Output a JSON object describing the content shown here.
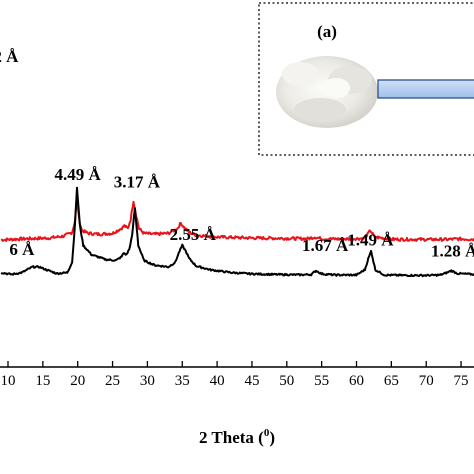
{
  "chart_data": {
    "type": "line",
    "xlabel_main": "2 Theta (",
    "xlabel_sup": "0",
    "xlabel_close": ")",
    "xlim": [
      9,
      77
    ],
    "ylim": [
      0,
      100
    ],
    "x_ticks": [
      "10",
      "15",
      "20",
      "25",
      "30",
      "35",
      "40",
      "45",
      "50",
      "55",
      "60",
      "65",
      "70",
      "75"
    ],
    "x_tick_values": [
      10,
      15,
      20,
      25,
      30,
      35,
      40,
      45,
      50,
      55,
      60,
      65,
      70,
      75
    ],
    "series": [
      {
        "color": "#e8141b",
        "x": [
          9,
          12,
          16,
          18,
          19.2,
          19.6,
          19.9,
          20.2,
          20.6,
          21.5,
          23,
          25,
          26.2,
          26.7,
          27.2,
          27.6,
          28,
          28.4,
          28.8,
          29.5,
          31,
          33,
          34.3,
          34.8,
          35.3,
          36,
          37,
          40,
          45,
          50,
          53,
          54,
          55,
          58,
          61,
          61.6,
          62,
          62.6,
          65,
          70,
          73,
          74.5,
          77
        ],
        "y": [
          68,
          68.5,
          69,
          70,
          72,
          78,
          91,
          79,
          73,
          71.5,
          71,
          71.5,
          74,
          75.5,
          74,
          79,
          89,
          81,
          74,
          71.5,
          71,
          71.5,
          74,
          77,
          74.5,
          72,
          70.5,
          69.5,
          69,
          68.8,
          68.6,
          69.5,
          68.6,
          68.4,
          68.8,
          71,
          73,
          69.5,
          68.3,
          68.2,
          68.2,
          68.5,
          68.3
        ]
      },
      {
        "color": "#000000",
        "x": [
          9,
          10.5,
          12,
          13.5,
          14.5,
          15.5,
          17,
          18.5,
          19.2,
          19.6,
          19.9,
          20.3,
          20.8,
          22,
          24,
          25.5,
          26.3,
          26.6,
          27,
          27.4,
          27.8,
          28.2,
          28.7,
          29.5,
          31,
          33,
          34,
          34.5,
          35,
          35.5,
          36,
          37,
          39,
          42,
          45,
          48,
          52,
          53.5,
          54.2,
          55,
          57,
          60,
          61.2,
          61.7,
          62.1,
          62.7,
          64,
          67,
          70,
          72,
          73,
          73.6,
          74.5,
          77
        ],
        "y": [
          50.5,
          49.5,
          50.5,
          53.5,
          53.5,
          52,
          50,
          50.5,
          56,
          76,
          96,
          76,
          65,
          60,
          57.5,
          57,
          59,
          61,
          60,
          63,
          70,
          85,
          65,
          57,
          54.5,
          53.5,
          56,
          61,
          65,
          62,
          58,
          54,
          52,
          50.5,
          49.8,
          49.5,
          49.3,
          49.5,
          51.5,
          49.8,
          49.2,
          49.2,
          52,
          58,
          62,
          52,
          49.2,
          49,
          49,
          49.2,
          50.5,
          51.5,
          50,
          49.5
        ]
      }
    ],
    "annotations": [
      {
        "text": "4.49 Å",
        "x": 20,
        "y": 100
      },
      {
        "text": "3.17 Å",
        "x": 28.5,
        "y": 96
      },
      {
        "text": "2.55 Å",
        "x": 36.5,
        "y": 68
      },
      {
        "text": "1.67 Å",
        "x": 55.5,
        "y": 62
      },
      {
        "text": "1.49 Å",
        "x": 62,
        "y": 65
      },
      {
        "text": "1.28 Å",
        "x": 74,
        "y": 59
      },
      {
        "text": "6 Å",
        "x": 12,
        "y": 60
      },
      {
        "text": "2 Å",
        "x": 9.7,
        "y": 163
      }
    ]
  },
  "inset": {
    "label": "(a)"
  }
}
